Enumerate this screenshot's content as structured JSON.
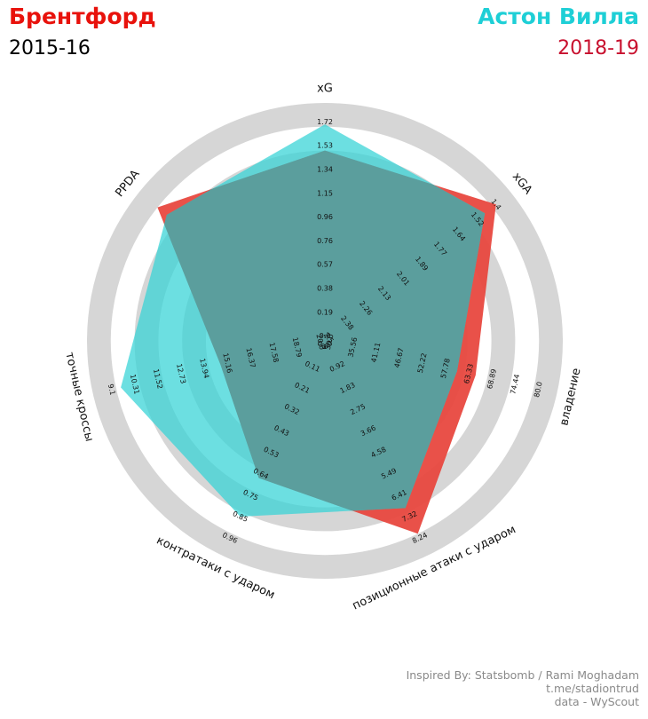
{
  "header": {
    "team_a": "Брентфорд",
    "season_a": "2015-16",
    "team_b": "Астон Вилла",
    "season_b": "2018-19"
  },
  "credits": {
    "line1": "Inspired By: Statsbomb / Rami Moghadam",
    "line2": "t.me/stadiontrud",
    "line3": "data - WyScout"
  },
  "colors": {
    "team_a": "#e8120c",
    "team_b": "#1ecfd6",
    "season_b": "#c8102e",
    "radar_a_fill": "#e8483f",
    "radar_b_fill": "#33d3d6",
    "overlap": "#5b9e9d",
    "ring": "#d6d6d6"
  },
  "chart_data": {
    "type": "radar",
    "axes": [
      {
        "label": "xG",
        "ticks": [
          "0.0",
          "0.19",
          "0.38",
          "0.57",
          "0.76",
          "0.96",
          "1.15",
          "1.34",
          "1.53",
          "1.72"
        ]
      },
      {
        "label": "xGA",
        "ticks": [
          "2.5",
          "2.38",
          "2.26",
          "2.13",
          "2.01",
          "1.89",
          "1.77",
          "1.64",
          "1.52",
          "1.4"
        ]
      },
      {
        "label": "владение",
        "ticks": [
          "30.0",
          "35.56",
          "41.11",
          "46.67",
          "52.22",
          "57.78",
          "63.33",
          "68.89",
          "74.44",
          "80.0"
        ]
      },
      {
        "label": "позиционные атаки с ударом",
        "ticks": [
          "0.0",
          "0.92",
          "1.83",
          "2.75",
          "3.66",
          "4.58",
          "5.49",
          "6.41",
          "7.32",
          "8.24"
        ]
      },
      {
        "label": "контратаки с ударом",
        "ticks": [
          "0.0",
          "0.11",
          "0.21",
          "0.32",
          "0.43",
          "0.53",
          "0.64",
          "0.75",
          "0.85",
          "0.96"
        ]
      },
      {
        "label": "точные кроссы",
        "ticks": [
          "20.0",
          "18.79",
          "17.58",
          "16.37",
          "15.16",
          "13.94",
          "12.73",
          "11.52",
          "10.31",
          "9.1"
        ]
      },
      {
        "label": "PPDA",
        "ticks": []
      }
    ],
    "series": [
      {
        "name": "Брентфорд",
        "season": "2015-16",
        "values": [
          0.8,
          0.92,
          0.65,
          0.9,
          0.64,
          0.45,
          0.9
        ]
      },
      {
        "name": "Астон Вилла",
        "season": "2018-19",
        "values": [
          0.91,
          0.86,
          0.57,
          0.78,
          0.82,
          0.88,
          0.85
        ]
      }
    ]
  }
}
